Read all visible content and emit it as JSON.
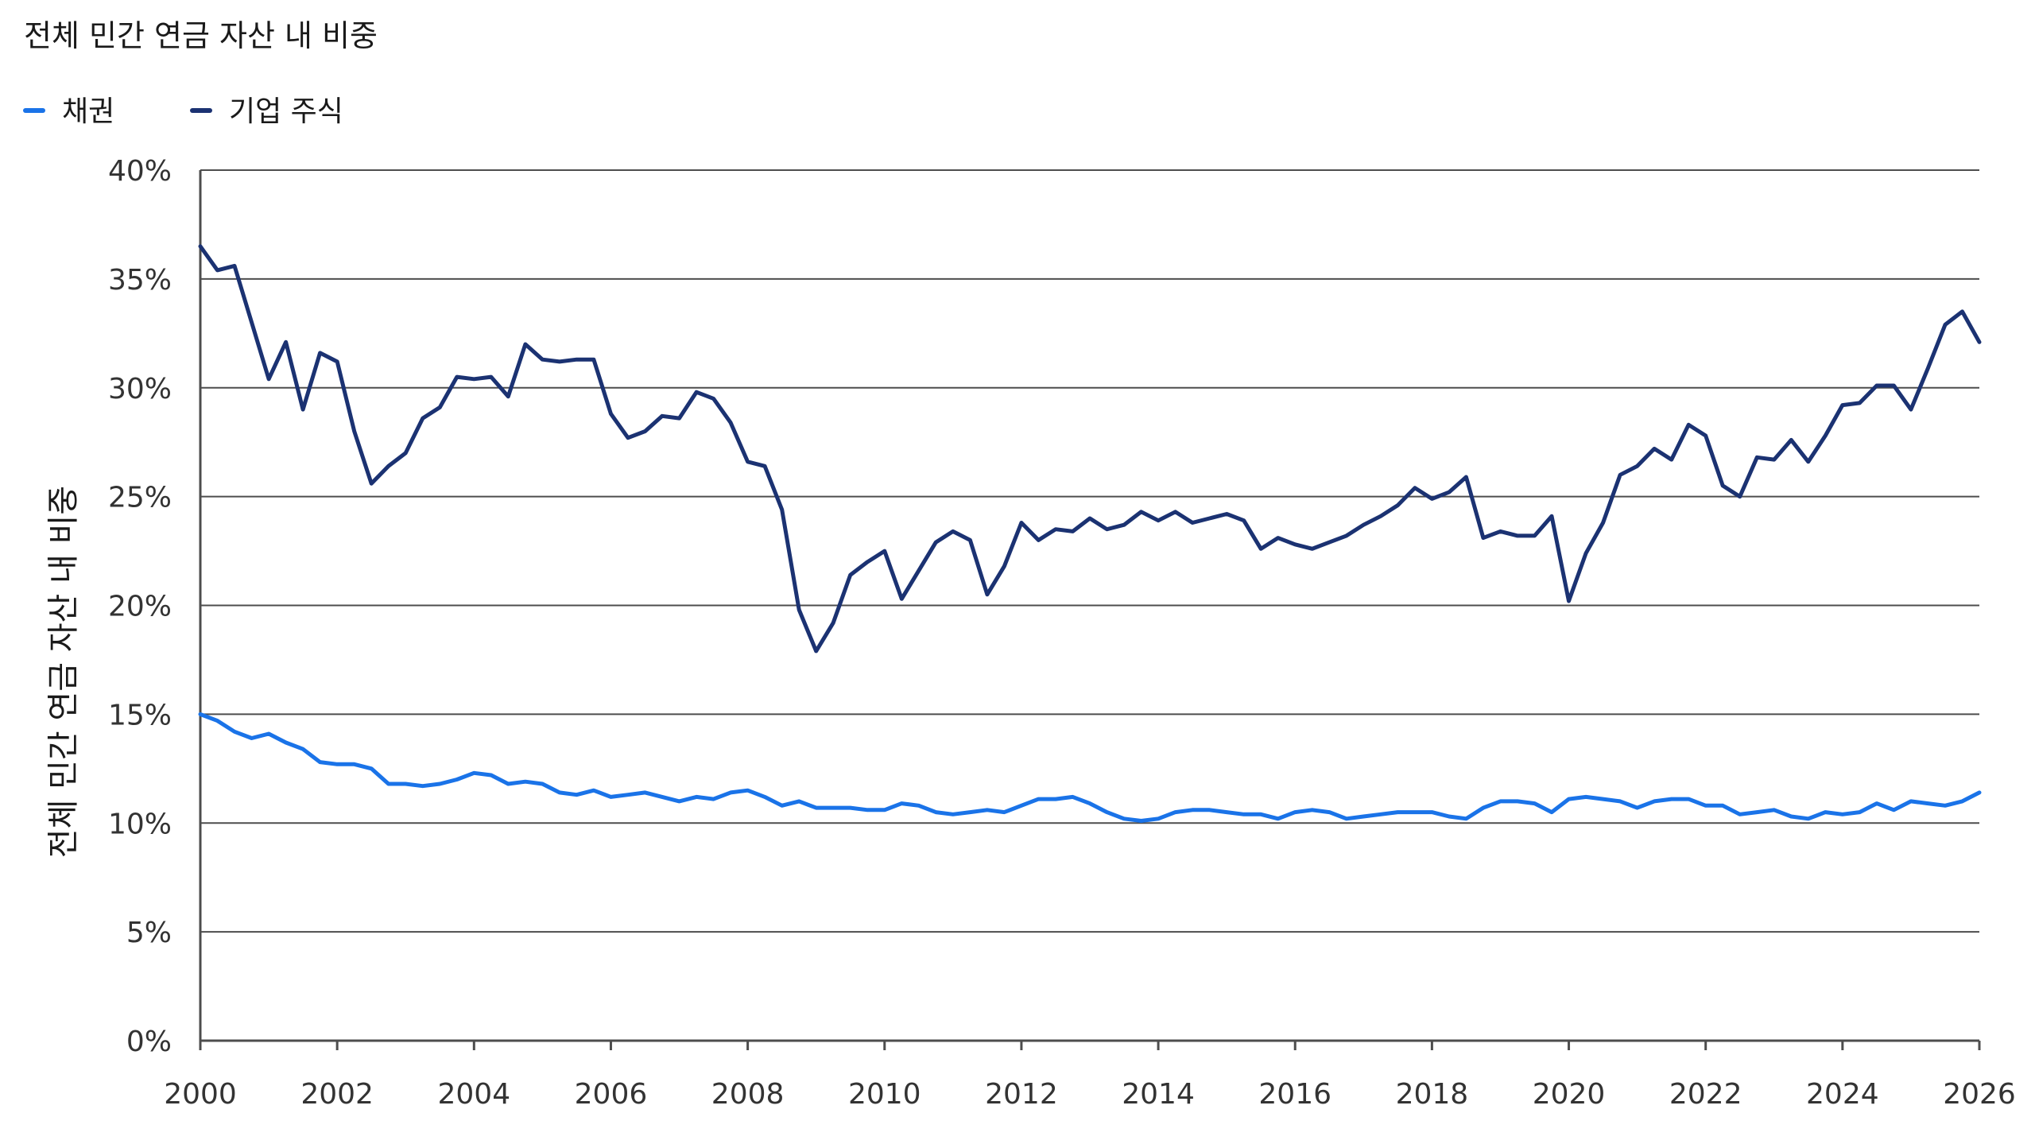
{
  "chart_data": {
    "type": "line",
    "title": "전체 민간 연금 자산 내 비중",
    "ylabel": "전체 민간 연금 자산 내 비중",
    "xlabel": "",
    "xlim": [
      2000,
      2026
    ],
    "ylim": [
      0,
      40
    ],
    "x_ticks": [
      "2000",
      "2002",
      "2004",
      "2006",
      "2008",
      "2010",
      "2012",
      "2014",
      "2016",
      "2018",
      "2020",
      "2022",
      "2024",
      "2026"
    ],
    "y_ticks": [
      "0%",
      "5%",
      "10%",
      "15%",
      "20%",
      "25%",
      "30%",
      "35%",
      "40%"
    ],
    "grid": true,
    "legend_position": "top-left",
    "series": [
      {
        "name": "채권",
        "color": "#1a73e8",
        "points": [
          [
            2000.0,
            15.0
          ],
          [
            2000.25,
            14.7
          ],
          [
            2000.5,
            14.2
          ],
          [
            2000.75,
            13.9
          ],
          [
            2001.0,
            14.1
          ],
          [
            2001.25,
            13.7
          ],
          [
            2001.5,
            13.4
          ],
          [
            2001.75,
            12.8
          ],
          [
            2002.0,
            12.7
          ],
          [
            2002.25,
            12.7
          ],
          [
            2002.5,
            12.5
          ],
          [
            2002.75,
            11.8
          ],
          [
            2003.0,
            11.8
          ],
          [
            2003.25,
            11.7
          ],
          [
            2003.5,
            11.8
          ],
          [
            2003.75,
            12.0
          ],
          [
            2004.0,
            12.3
          ],
          [
            2004.25,
            12.2
          ],
          [
            2004.5,
            11.8
          ],
          [
            2004.75,
            11.9
          ],
          [
            2005.0,
            11.8
          ],
          [
            2005.25,
            11.4
          ],
          [
            2005.5,
            11.3
          ],
          [
            2005.75,
            11.5
          ],
          [
            2006.0,
            11.2
          ],
          [
            2006.25,
            11.3
          ],
          [
            2006.5,
            11.4
          ],
          [
            2006.75,
            11.2
          ],
          [
            2007.0,
            11.0
          ],
          [
            2007.25,
            11.2
          ],
          [
            2007.5,
            11.1
          ],
          [
            2007.75,
            11.4
          ],
          [
            2008.0,
            11.5
          ],
          [
            2008.25,
            11.2
          ],
          [
            2008.5,
            10.8
          ],
          [
            2008.75,
            11.0
          ],
          [
            2009.0,
            10.7
          ],
          [
            2009.25,
            10.7
          ],
          [
            2009.5,
            10.7
          ],
          [
            2009.75,
            10.6
          ],
          [
            2010.0,
            10.6
          ],
          [
            2010.25,
            10.9
          ],
          [
            2010.5,
            10.8
          ],
          [
            2010.75,
            10.5
          ],
          [
            2011.0,
            10.4
          ],
          [
            2011.25,
            10.5
          ],
          [
            2011.5,
            10.6
          ],
          [
            2011.75,
            10.5
          ],
          [
            2012.0,
            10.8
          ],
          [
            2012.25,
            11.1
          ],
          [
            2012.5,
            11.1
          ],
          [
            2012.75,
            11.2
          ],
          [
            2013.0,
            10.9
          ],
          [
            2013.25,
            10.5
          ],
          [
            2013.5,
            10.2
          ],
          [
            2013.75,
            10.1
          ],
          [
            2014.0,
            10.2
          ],
          [
            2014.25,
            10.5
          ],
          [
            2014.5,
            10.6
          ],
          [
            2014.75,
            10.6
          ],
          [
            2015.0,
            10.5
          ],
          [
            2015.25,
            10.4
          ],
          [
            2015.5,
            10.4
          ],
          [
            2015.75,
            10.2
          ],
          [
            2016.0,
            10.5
          ],
          [
            2016.25,
            10.6
          ],
          [
            2016.5,
            10.5
          ],
          [
            2016.75,
            10.2
          ],
          [
            2017.0,
            10.3
          ],
          [
            2017.25,
            10.4
          ],
          [
            2017.5,
            10.5
          ],
          [
            2017.75,
            10.5
          ],
          [
            2018.0,
            10.5
          ],
          [
            2018.25,
            10.3
          ],
          [
            2018.5,
            10.2
          ],
          [
            2018.75,
            10.7
          ],
          [
            2019.0,
            11.0
          ],
          [
            2019.25,
            11.0
          ],
          [
            2019.5,
            10.9
          ],
          [
            2019.75,
            10.5
          ],
          [
            2020.0,
            11.1
          ],
          [
            2020.25,
            11.2
          ],
          [
            2020.5,
            11.1
          ],
          [
            2020.75,
            11.0
          ],
          [
            2021.0,
            10.7
          ],
          [
            2021.25,
            11.0
          ],
          [
            2021.5,
            11.1
          ],
          [
            2021.75,
            11.1
          ],
          [
            2022.0,
            10.8
          ],
          [
            2022.25,
            10.8
          ],
          [
            2022.5,
            10.4
          ],
          [
            2022.75,
            10.5
          ],
          [
            2023.0,
            10.6
          ],
          [
            2023.25,
            10.3
          ],
          [
            2023.5,
            10.2
          ],
          [
            2023.75,
            10.5
          ],
          [
            2024.0,
            10.4
          ],
          [
            2024.25,
            10.5
          ],
          [
            2024.5,
            10.9
          ],
          [
            2024.75,
            10.6
          ],
          [
            2025.0,
            11.0
          ],
          [
            2025.25,
            10.9
          ],
          [
            2025.5,
            10.8
          ],
          [
            2025.75,
            11.0
          ],
          [
            2026.0,
            11.4
          ]
        ]
      },
      {
        "name": "기업 주식",
        "color": "#1b3272",
        "points": [
          [
            2000.0,
            36.5
          ],
          [
            2000.25,
            35.4
          ],
          [
            2000.5,
            35.6
          ],
          [
            2000.75,
            33.0
          ],
          [
            2001.0,
            30.4
          ],
          [
            2001.25,
            32.1
          ],
          [
            2001.5,
            29.0
          ],
          [
            2001.75,
            31.6
          ],
          [
            2002.0,
            31.2
          ],
          [
            2002.25,
            28.0
          ],
          [
            2002.5,
            25.6
          ],
          [
            2002.75,
            26.4
          ],
          [
            2003.0,
            27.0
          ],
          [
            2003.25,
            28.6
          ],
          [
            2003.5,
            29.1
          ],
          [
            2003.75,
            30.5
          ],
          [
            2004.0,
            30.4
          ],
          [
            2004.25,
            30.5
          ],
          [
            2004.5,
            29.6
          ],
          [
            2004.75,
            32.0
          ],
          [
            2005.0,
            31.3
          ],
          [
            2005.25,
            31.2
          ],
          [
            2005.5,
            31.3
          ],
          [
            2005.75,
            31.3
          ],
          [
            2006.0,
            28.8
          ],
          [
            2006.25,
            27.7
          ],
          [
            2006.5,
            28.0
          ],
          [
            2006.75,
            28.7
          ],
          [
            2007.0,
            28.6
          ],
          [
            2007.25,
            29.8
          ],
          [
            2007.5,
            29.5
          ],
          [
            2007.75,
            28.4
          ],
          [
            2008.0,
            26.6
          ],
          [
            2008.25,
            26.4
          ],
          [
            2008.5,
            24.4
          ],
          [
            2008.75,
            19.8
          ],
          [
            2009.0,
            17.9
          ],
          [
            2009.25,
            19.2
          ],
          [
            2009.5,
            21.4
          ],
          [
            2009.75,
            22.0
          ],
          [
            2010.0,
            22.5
          ],
          [
            2010.25,
            20.3
          ],
          [
            2010.5,
            21.6
          ],
          [
            2010.75,
            22.9
          ],
          [
            2011.0,
            23.4
          ],
          [
            2011.25,
            23.0
          ],
          [
            2011.5,
            20.5
          ],
          [
            2011.75,
            21.8
          ],
          [
            2012.0,
            23.8
          ],
          [
            2012.25,
            23.0
          ],
          [
            2012.5,
            23.5
          ],
          [
            2012.75,
            23.4
          ],
          [
            2013.0,
            24.0
          ],
          [
            2013.25,
            23.5
          ],
          [
            2013.5,
            23.7
          ],
          [
            2013.75,
            24.3
          ],
          [
            2014.0,
            23.9
          ],
          [
            2014.25,
            24.3
          ],
          [
            2014.5,
            23.8
          ],
          [
            2014.75,
            24.0
          ],
          [
            2015.0,
            24.2
          ],
          [
            2015.25,
            23.9
          ],
          [
            2015.5,
            22.6
          ],
          [
            2015.75,
            23.1
          ],
          [
            2016.0,
            22.8
          ],
          [
            2016.25,
            22.6
          ],
          [
            2016.5,
            22.9
          ],
          [
            2016.75,
            23.2
          ],
          [
            2017.0,
            23.7
          ],
          [
            2017.25,
            24.1
          ],
          [
            2017.5,
            24.6
          ],
          [
            2017.75,
            25.4
          ],
          [
            2018.0,
            24.9
          ],
          [
            2018.25,
            25.2
          ],
          [
            2018.5,
            25.9
          ],
          [
            2018.75,
            23.1
          ],
          [
            2019.0,
            23.4
          ],
          [
            2019.25,
            23.2
          ],
          [
            2019.5,
            23.2
          ],
          [
            2019.75,
            24.1
          ],
          [
            2020.0,
            20.2
          ],
          [
            2020.25,
            22.4
          ],
          [
            2020.5,
            23.8
          ],
          [
            2020.75,
            26.0
          ],
          [
            2021.0,
            26.4
          ],
          [
            2021.25,
            27.2
          ],
          [
            2021.5,
            26.7
          ],
          [
            2021.75,
            28.3
          ],
          [
            2022.0,
            27.8
          ],
          [
            2022.25,
            25.5
          ],
          [
            2022.5,
            25.0
          ],
          [
            2022.75,
            26.8
          ],
          [
            2023.0,
            26.7
          ],
          [
            2023.25,
            27.6
          ],
          [
            2023.5,
            26.6
          ],
          [
            2023.75,
            27.8
          ],
          [
            2024.0,
            29.2
          ],
          [
            2024.25,
            29.3
          ],
          [
            2024.5,
            30.1
          ],
          [
            2024.75,
            30.1
          ],
          [
            2025.0,
            29.0
          ],
          [
            2025.25,
            30.9
          ],
          [
            2025.5,
            32.9
          ],
          [
            2025.75,
            33.5
          ],
          [
            2026.0,
            32.1
          ]
        ]
      }
    ]
  }
}
